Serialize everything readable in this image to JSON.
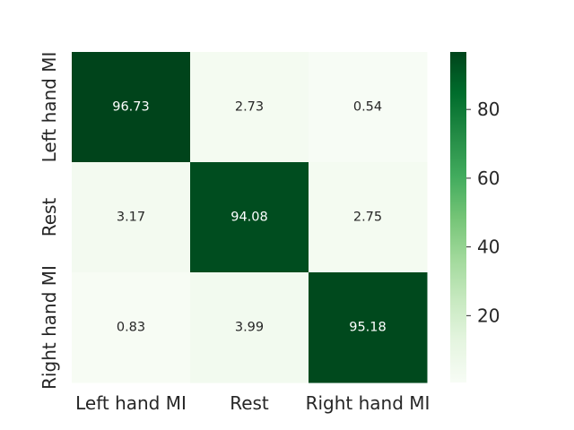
{
  "chart_data": {
    "type": "heatmap",
    "title": "",
    "xlabel": "",
    "ylabel": "",
    "x_categories": [
      "Left hand MI",
      "Rest",
      "Right hand MI"
    ],
    "y_categories": [
      "Left hand MI",
      "Rest",
      "Right hand MI"
    ],
    "values": [
      [
        96.73,
        2.73,
        0.54
      ],
      [
        3.17,
        94.08,
        2.75
      ],
      [
        0.83,
        3.99,
        95.18
      ]
    ],
    "value_labels": [
      [
        "96.73",
        "2.73",
        "0.54"
      ],
      [
        "3.17",
        "94.08",
        "2.75"
      ],
      [
        "0.83",
        "3.99",
        "95.18"
      ]
    ],
    "colormap": "Greens",
    "color_range": [
      0.54,
      96.73
    ],
    "colorbar": {
      "ticks": [
        20,
        40,
        60,
        80
      ],
      "tick_labels": [
        "20",
        "40",
        "60",
        "80"
      ]
    }
  }
}
